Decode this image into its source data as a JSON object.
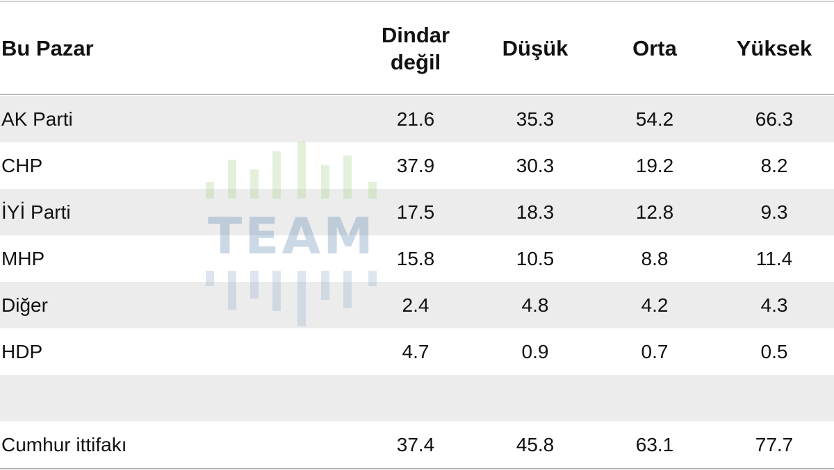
{
  "chart_data": {
    "type": "table",
    "title": "Bu Pazar",
    "columns": [
      "Dindar değil",
      "Düşük",
      "Orta",
      "Yüksek"
    ],
    "rows": [
      {
        "label": "AK Parti",
        "values": [
          "21.6",
          "35.3",
          "54.2",
          "66.3"
        ]
      },
      {
        "label": "CHP",
        "values": [
          "37.9",
          "30.3",
          "19.2",
          "8.2"
        ]
      },
      {
        "label": "İYİ Parti",
        "values": [
          "17.5",
          "18.3",
          "12.8",
          "9.3"
        ]
      },
      {
        "label": "MHP",
        "values": [
          "15.8",
          "10.5",
          "8.8",
          "11.4"
        ]
      },
      {
        "label": "Diğer",
        "values": [
          "2.4",
          "4.8",
          "4.2",
          "4.3"
        ]
      },
      {
        "label": "HDP",
        "values": [
          "4.7",
          "0.9",
          "0.7",
          "0.5"
        ]
      },
      {
        "label": "",
        "values": [
          "",
          "",
          "",
          ""
        ]
      },
      {
        "label": "Cumhur ittifakı",
        "values": [
          "37.4",
          "45.8",
          "63.1",
          "77.7"
        ]
      }
    ]
  },
  "watermark": {
    "text": "TEAM",
    "colors": {
      "bars_top": "#a9d692",
      "text": "#5f88b3",
      "bars_bottom": "#98b4cf"
    }
  },
  "colors": {
    "row_shade": "#ececec",
    "rule": "#bdbdbd",
    "text": "#111111"
  }
}
